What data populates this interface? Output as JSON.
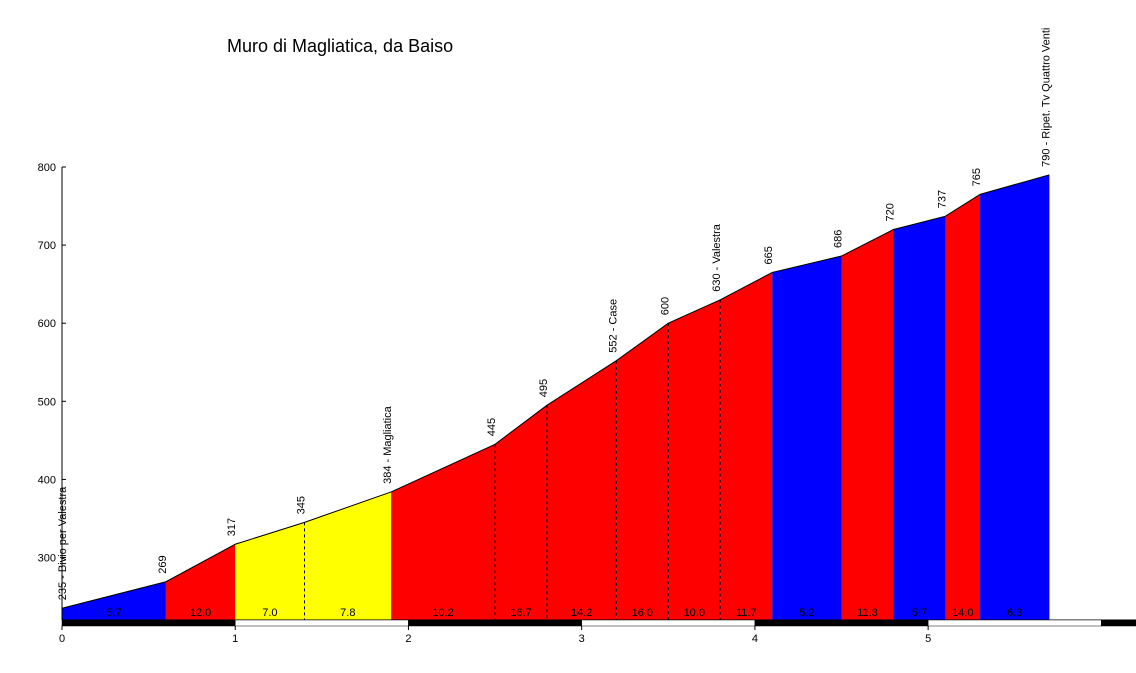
{
  "chart_data": {
    "type": "area",
    "title": "Muro di Magliatica, da Baiso",
    "xlabel": "",
    "ylabel": "",
    "xlim": [
      0,
      6.2
    ],
    "ylim": [
      220,
      800
    ],
    "xticks": [
      0,
      1,
      2,
      3,
      4,
      5
    ],
    "yticks": [
      300,
      400,
      500,
      600,
      700,
      800
    ],
    "grid": false,
    "points": [
      {
        "x": 0,
        "y": 235,
        "label": "235 - Bivio per Valestra"
      },
      {
        "x": 0.6,
        "y": 269,
        "label": "269"
      },
      {
        "x": 1.0,
        "y": 317,
        "label": "317"
      },
      {
        "x": 1.4,
        "y": 345,
        "label": "345"
      },
      {
        "x": 1.9,
        "y": 384,
        "label": "384 - Magliatica"
      },
      {
        "x": 2.5,
        "y": 445,
        "label": "445"
      },
      {
        "x": 2.8,
        "y": 495,
        "label": "495"
      },
      {
        "x": 3.2,
        "y": 552,
        "label": "552 - Case"
      },
      {
        "x": 3.5,
        "y": 600,
        "label": "600"
      },
      {
        "x": 3.8,
        "y": 630,
        "label": "630 - Valestra"
      },
      {
        "x": 4.1,
        "y": 665,
        "label": "665"
      },
      {
        "x": 4.5,
        "y": 686,
        "label": "686"
      },
      {
        "x": 4.8,
        "y": 720,
        "label": "720"
      },
      {
        "x": 5.1,
        "y": 737,
        "label": "737"
      },
      {
        "x": 5.3,
        "y": 765,
        "label": "765"
      },
      {
        "x": 5.7,
        "y": 790,
        "label": "790 - Ripet. Tv Quattro Venti"
      }
    ],
    "segments": [
      {
        "gradient": "5.7",
        "color": "#0000ff"
      },
      {
        "gradient": "12.0",
        "color": "#ff0000"
      },
      {
        "gradient": "7.0",
        "color": "#ffff00"
      },
      {
        "gradient": "7.8",
        "color": "#ffff00"
      },
      {
        "gradient": "10.2",
        "color": "#ff0000"
      },
      {
        "gradient": "16.7",
        "color": "#ff0000"
      },
      {
        "gradient": "14.2",
        "color": "#ff0000"
      },
      {
        "gradient": "16.0",
        "color": "#ff0000"
      },
      {
        "gradient": "10.0",
        "color": "#ff0000"
      },
      {
        "gradient": "11.7",
        "color": "#ff0000"
      },
      {
        "gradient": "5.2",
        "color": "#0000ff"
      },
      {
        "gradient": "11.3",
        "color": "#ff0000"
      },
      {
        "gradient": "5.7",
        "color": "#0000ff"
      },
      {
        "gradient": "14.0",
        "color": "#ff0000"
      },
      {
        "gradient": "6.3",
        "color": "#0000ff"
      }
    ]
  }
}
